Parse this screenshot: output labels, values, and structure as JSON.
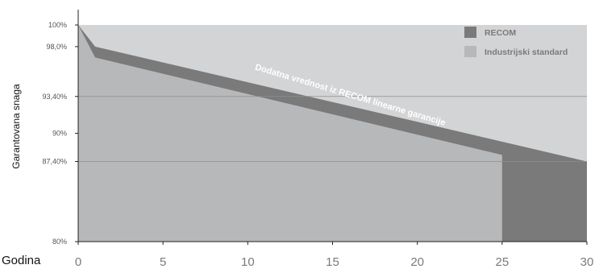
{
  "chart_data": {
    "type": "area",
    "xlabel": "Godina",
    "ylabel": "Garantovana snaga",
    "xlim": [
      0,
      30
    ],
    "ylim": [
      80,
      100
    ],
    "x_ticks": [
      {
        "value": 0,
        "label": "0"
      },
      {
        "value": 5,
        "label": "5"
      },
      {
        "value": 10,
        "label": "10"
      },
      {
        "value": 15,
        "label": "15"
      },
      {
        "value": 20,
        "label": "20"
      },
      {
        "value": 25,
        "label": "25"
      },
      {
        "value": 30,
        "label": "30"
      }
    ],
    "y_ticks": [
      {
        "value": 80,
        "label": "80%"
      },
      {
        "value": 87.4,
        "label": "87,40%"
      },
      {
        "value": 90,
        "label": "90%"
      },
      {
        "value": 93.4,
        "label": "93,40%"
      },
      {
        "value": 98,
        "label": "98,0%"
      },
      {
        "value": 100,
        "label": "100%"
      }
    ],
    "reference_lines": [
      87.4,
      93.4
    ],
    "series": [
      {
        "name": "RECOM",
        "color": "#7a7a7a",
        "points": [
          [
            0,
            100
          ],
          [
            1,
            98
          ],
          [
            30,
            87.4
          ]
        ]
      },
      {
        "name": "Industrijski standard",
        "color": "#b7b8ba",
        "points": [
          [
            0,
            100
          ],
          [
            1,
            97
          ],
          [
            25,
            88
          ]
        ]
      }
    ],
    "annotation": {
      "text": "Dodatna vrednost iz RECOM linearne garancije",
      "x": 16,
      "y": 93.3,
      "angle": 16.5
    },
    "legend_position": "top-right",
    "grid": false
  }
}
